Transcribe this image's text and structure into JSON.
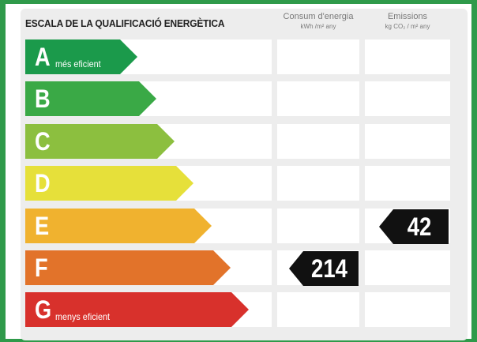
{
  "title": "ESCALA DE LA QUALIFICACIÓ ENERGÈTICA",
  "columns": {
    "consumption": {
      "label": "Consum d'energia",
      "unit": "kWh /m² any"
    },
    "emissions": {
      "label": "Emissions",
      "unit": "kg CO₂ / m² any"
    }
  },
  "grades": [
    {
      "letter": "A",
      "label": "més eficient",
      "color": "#1b9a4b"
    },
    {
      "letter": "B",
      "label": "",
      "color": "#3aa946"
    },
    {
      "letter": "C",
      "label": "",
      "color": "#8cbf3f"
    },
    {
      "letter": "D",
      "label": "",
      "color": "#e6e03a"
    },
    {
      "letter": "E",
      "label": "",
      "color": "#f0b22f"
    },
    {
      "letter": "F",
      "label": "",
      "color": "#e2732a"
    },
    {
      "letter": "G",
      "label": "menys eficient",
      "color": "#d8312c"
    }
  ],
  "ratings": {
    "consumption": {
      "value": "214",
      "grade": "F"
    },
    "emissions": {
      "value": "42",
      "grade": "E"
    }
  },
  "colors": {
    "frame": "#2f9a4a",
    "panel": "#ededed",
    "marker": "#111111"
  }
}
